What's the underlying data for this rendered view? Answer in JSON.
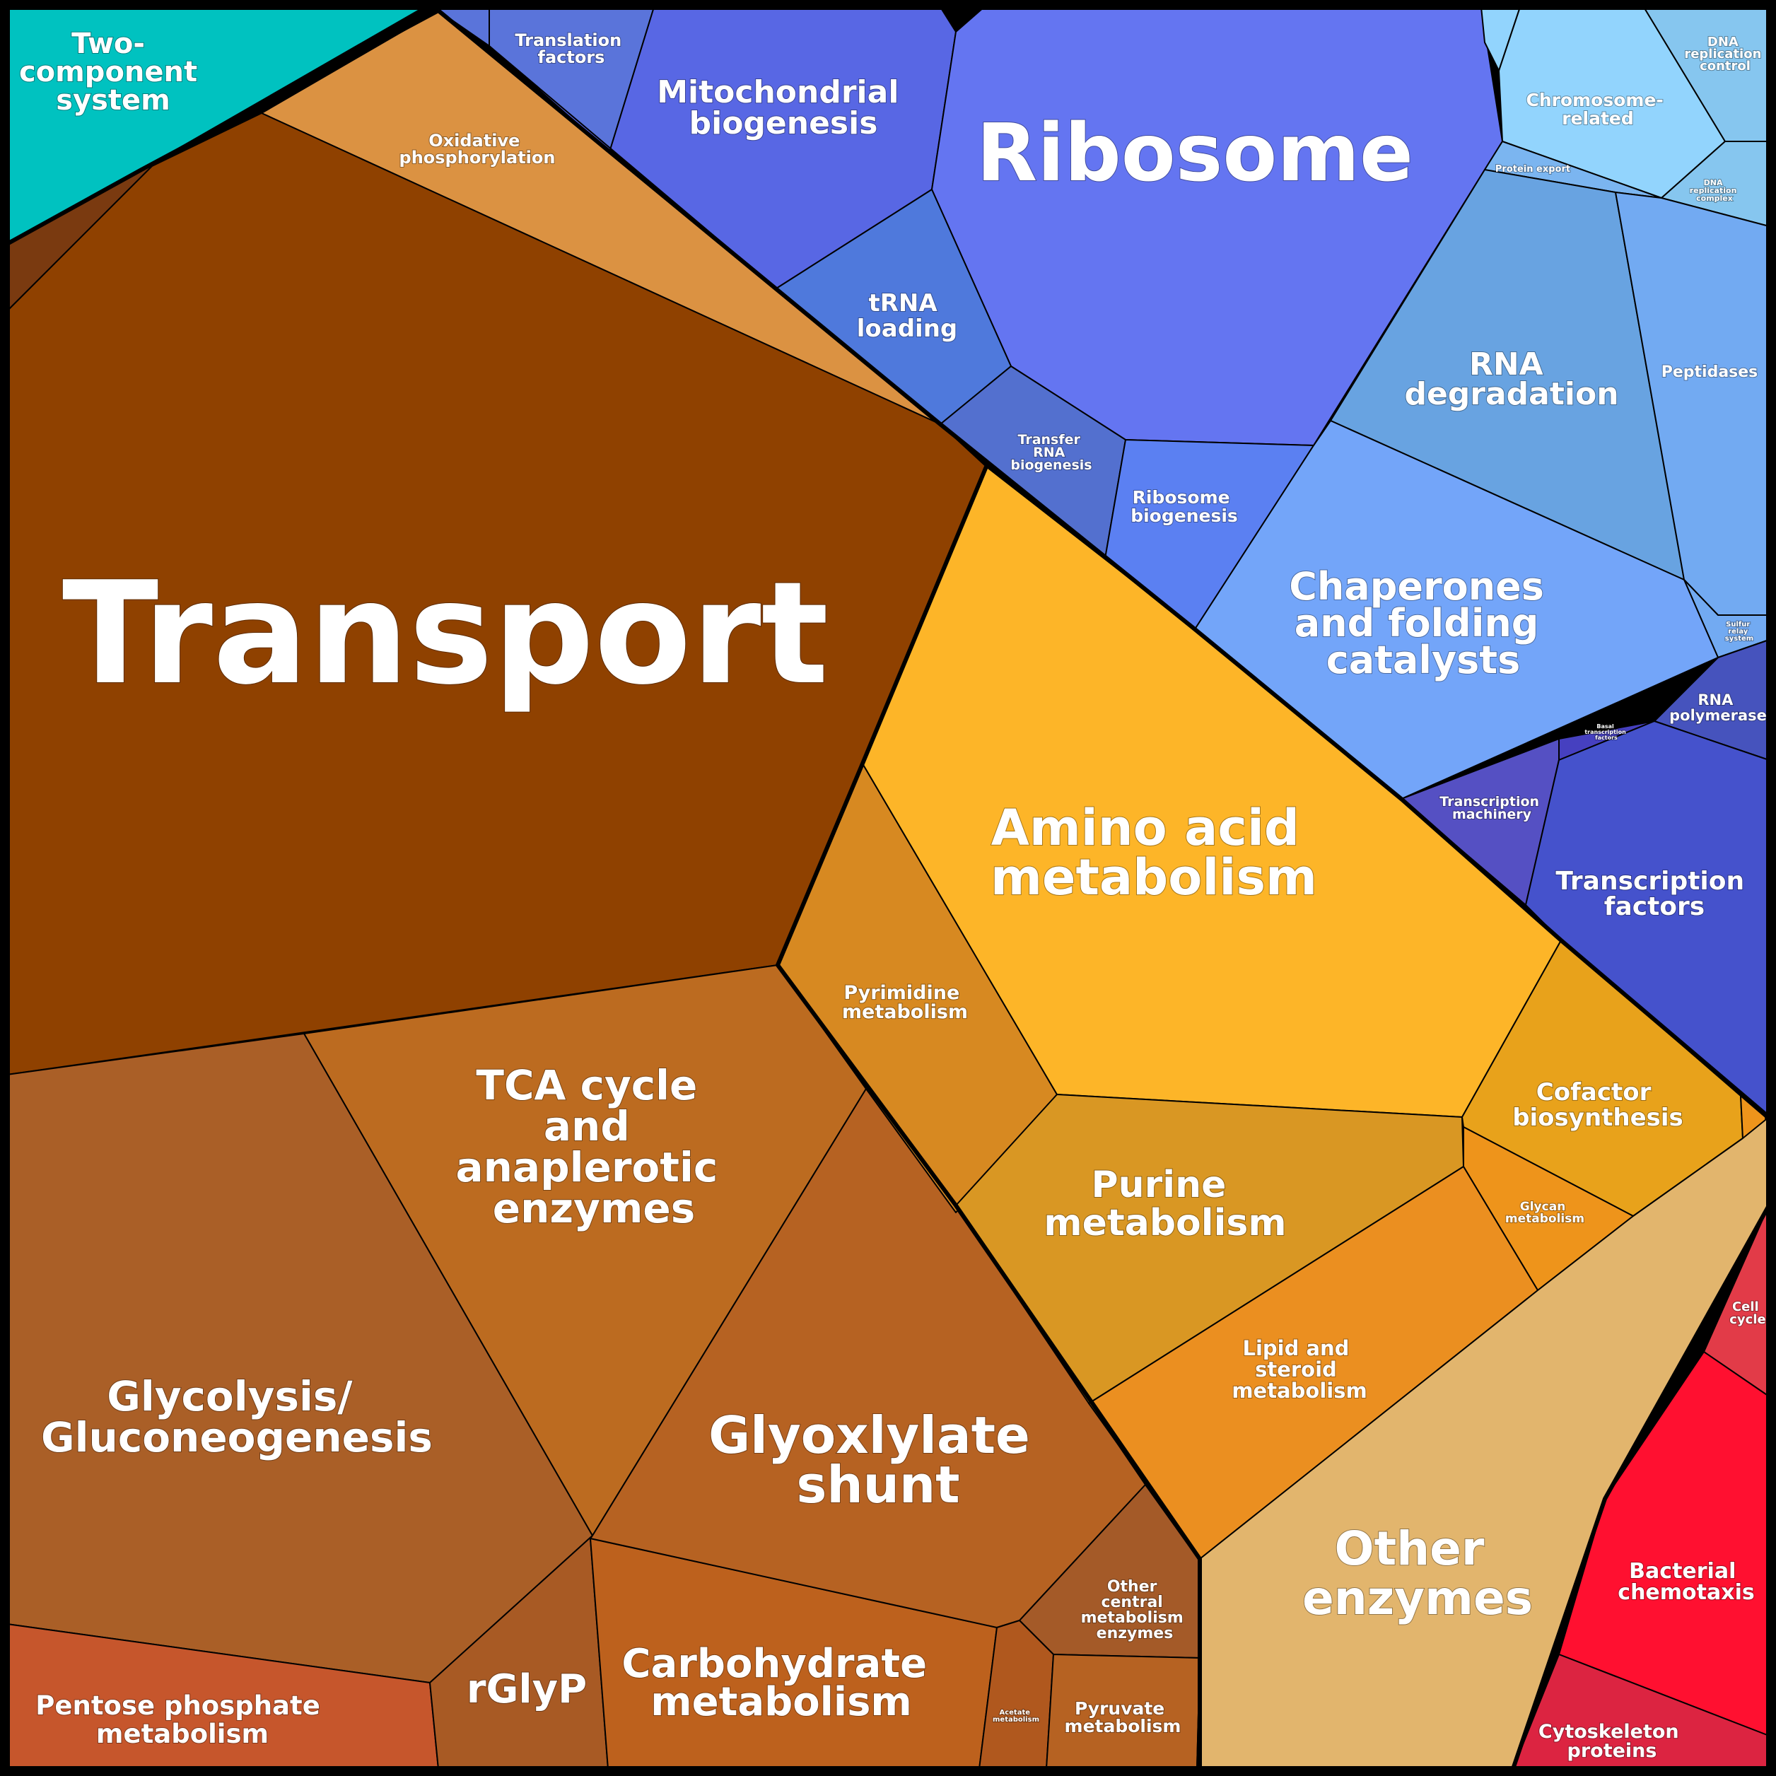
{
  "colors": {
    "transport": "#8f4100",
    "oxidative": "#db9242",
    "two_component": "#00c2c0",
    "small_brown": "#7a3a10",
    "tca": "#bc6b20",
    "glycolysis": "#aa5f27",
    "pentose": "#c6562c",
    "rglyp": "#a85a24",
    "carbohydrate": "#bd611d",
    "glyoxylate": "#b66222",
    "other_central": "#a45a28",
    "acetate": "#b0581e",
    "pyruvate": "#b66222",
    "pyrimidine": "#d78921",
    "amino_acid": "#fdb528",
    "purine": "#d99723",
    "cofactor": "#e8a21b",
    "glycan": "#ee941b",
    "lipid": "#eb8f20",
    "other_enzymes": "#e2b56d",
    "ribosome": "#6475f1",
    "mito": "#5867e4",
    "translation": "#5a74da",
    "trna_loading": "#4f79dc",
    "transfer_rna": "#5370cf",
    "ribosome_biogenesis": "#5b80f2",
    "chromosome": "#92d4fd",
    "dna_control": "#86c6ef",
    "rna_degradation": "#68a3e1",
    "peptidases": "#72aaf2",
    "chaperones": "#73a5f9",
    "protein_export": "#7bb5f0",
    "rna_polymerase": "#4653bd",
    "basal": "#4640c0",
    "transcription_machinery": "#5550c3",
    "transcription_factors": "#4552cc",
    "cell_cycle": "#e23b48",
    "bacterial_chemotaxis": "#ff1030",
    "cytoskeleton": "#dc2441"
  },
  "labels": {
    "transport": "Transport",
    "oxidative": "Oxidative phosphorylation",
    "two_component": "Two- component system",
    "tca": "TCA cycle and anaplerotic enzymes",
    "glycolysis": "Glycolysis/ Gluconeogenesis",
    "pentose": "Pentose phosphate metabolism",
    "rglyp": "rGlyP",
    "carbohydrate": "Carbohydrate metabolism",
    "glyoxylate": "Glyoxlylate shunt",
    "other_central": "Other central metabolism enzymes",
    "acetate": "Acetate metabolism",
    "pyruvate": "Pyruvate metabolism",
    "pyrimidine": "Pyrimidine metabolism",
    "amino_acid": "Amino acid metabolism",
    "purine": "Purine metabolism",
    "cofactor": "Cofactor biosynthesis",
    "glycan": "Glycan metabolism",
    "lipid": "Lipid and steroid metabolism",
    "other_enzymes": "Other enzymes",
    "ribosome": "Ribosome",
    "mito": "Mitochondrial biogenesis",
    "translation": "Translation factors",
    "trna_loading": "tRNA loading",
    "transfer_rna": "Transfer RNA biogenesis",
    "ribosome_biogenesis": "Ribosome biogenesis",
    "chromosome": "Chromosome- related",
    "dna_control": "DNA replication control",
    "rna_degradation": "RNA degradation",
    "peptidases": "Peptidases",
    "chaperones": "Chaperones and folding catalysts",
    "protein_export": "Protein export",
    "dna_complex": "DNA replication complex",
    "sulfur_relay": "Sulfur relay system",
    "rna_polymerase": "RNA polymerase",
    "basal": "Basal transcription factors",
    "transcription_machinery": "Transcription machinery",
    "transcription_factors": "Transcription factors",
    "cell_cycle": "Cell cycle",
    "bacterial_chemotaxis": "Bacterial chemotaxis",
    "cytoskeleton": "Cytoskeleton proteins"
  }
}
